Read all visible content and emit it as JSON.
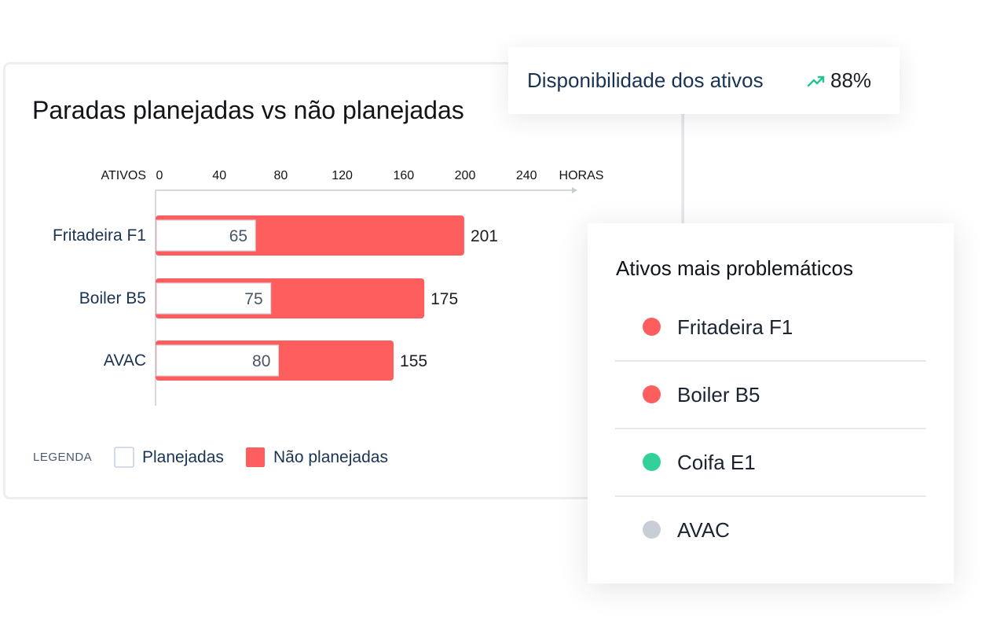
{
  "chart": {
    "title": "Paradas planejadas vs não planejadas"
  },
  "chart_data": {
    "type": "bar",
    "orientation": "horizontal",
    "stacked_overlay": true,
    "title": "Paradas planejadas vs não planejadas",
    "ylabel": "ATIVOS",
    "xlabel": "HORAS",
    "x_ticks": [
      0,
      40,
      80,
      120,
      160,
      200,
      240
    ],
    "xlim": [
      0,
      280
    ],
    "categories": [
      "Fritadeira F1",
      "Boiler B5",
      "AVAC"
    ],
    "series": [
      {
        "name": "Planejadas",
        "values": [
          65,
          75,
          80
        ],
        "color": "#ffffff"
      },
      {
        "name": "Não planejadas",
        "values": [
          201,
          175,
          155
        ],
        "color": "#fe5f5e"
      }
    ],
    "legend": {
      "title": "LEGENDA",
      "position": "bottom-left",
      "items": [
        "Planejadas",
        "Não planejadas"
      ]
    },
    "grid": false
  },
  "availability": {
    "label": "Disponibilidade dos ativos",
    "value": "88%",
    "trend_icon": "trending-up-icon",
    "trend_color": "#22c38e"
  },
  "problems": {
    "title": "Ativos mais problemáticos",
    "items": [
      {
        "name": "Fritadeira F1",
        "color": "#fe5f5e"
      },
      {
        "name": "Boiler B5",
        "color": "#fe5f5e"
      },
      {
        "name": "Coifa E1",
        "color": "#33d19a"
      },
      {
        "name": "AVAC",
        "color": "#c9ced6"
      }
    ]
  },
  "colors": {
    "accent_red": "#fe5f5e",
    "label_navy": "#1a3352",
    "axis_gray": "#c7ccd3"
  }
}
